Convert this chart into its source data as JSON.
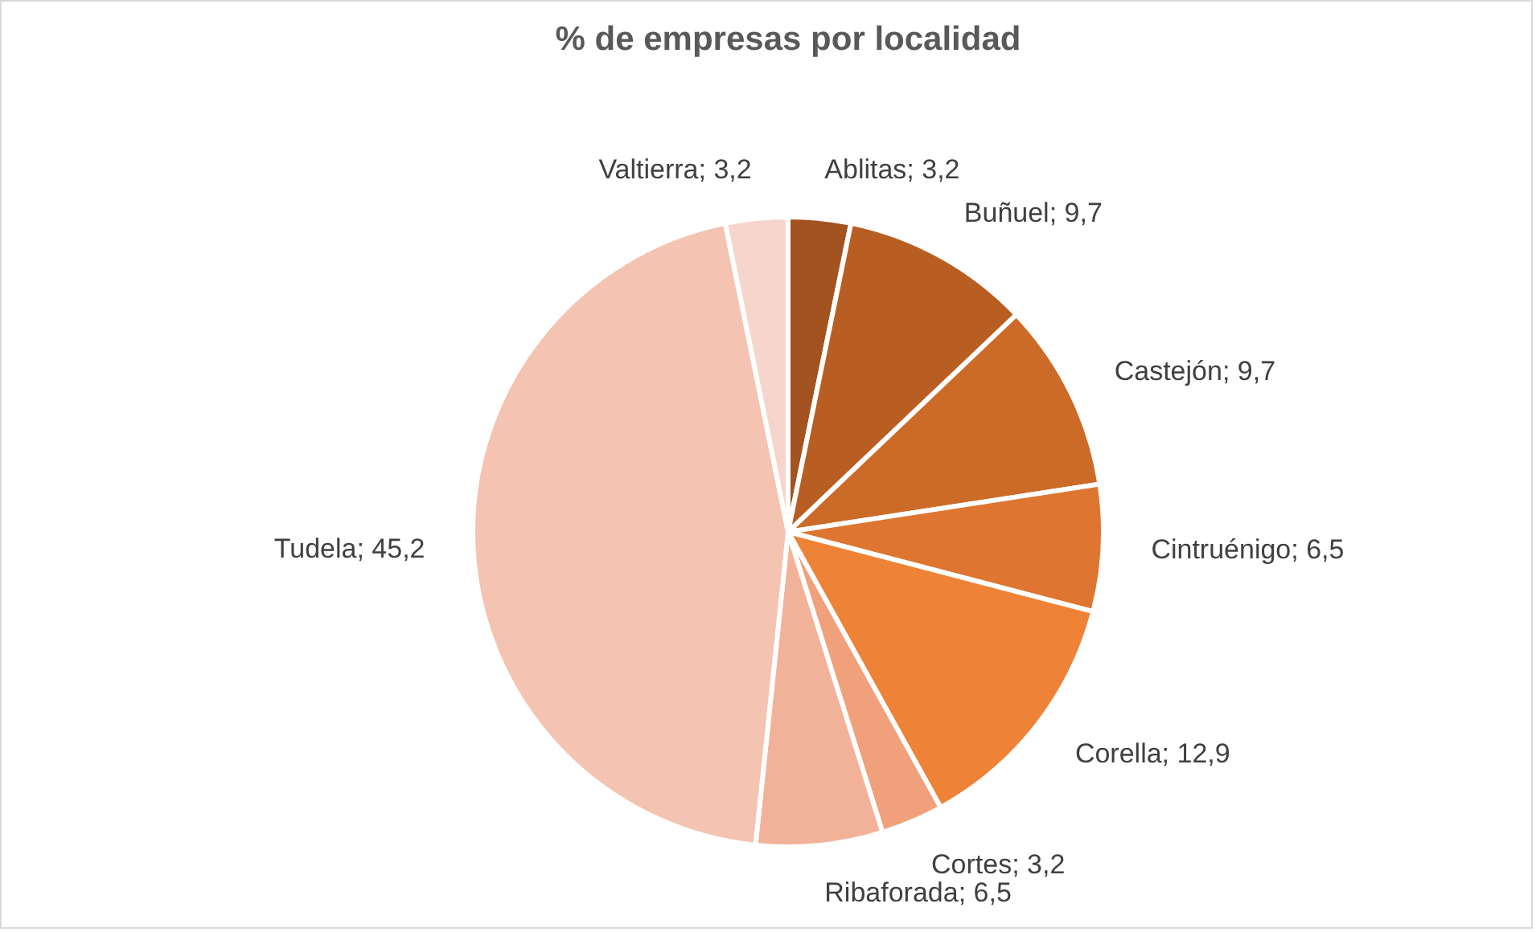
{
  "chart_data": {
    "type": "pie",
    "title": "% de empresas por localidad",
    "categories": [
      "Ablitas",
      "Buñuel",
      "Castejón",
      "Cintruénigo",
      "Corella",
      "Cortes",
      "Ribaforada",
      "Tudela",
      "Valtierra"
    ],
    "values": [
      3.2,
      9.7,
      9.7,
      6.5,
      12.9,
      3.2,
      6.5,
      45.2,
      3.2
    ],
    "value_labels": [
      "3,2",
      "9,7",
      "9,7",
      "6,5",
      "12,9",
      "3,2",
      "6,5",
      "45,2",
      "3,2"
    ],
    "colors": [
      "#a3531f",
      "#b95e22",
      "#cc6a28",
      "#de7530",
      "#ee8236",
      "#f0a07a",
      "#f2b29a",
      "#f4c3b2",
      "#f6d6cc"
    ]
  }
}
